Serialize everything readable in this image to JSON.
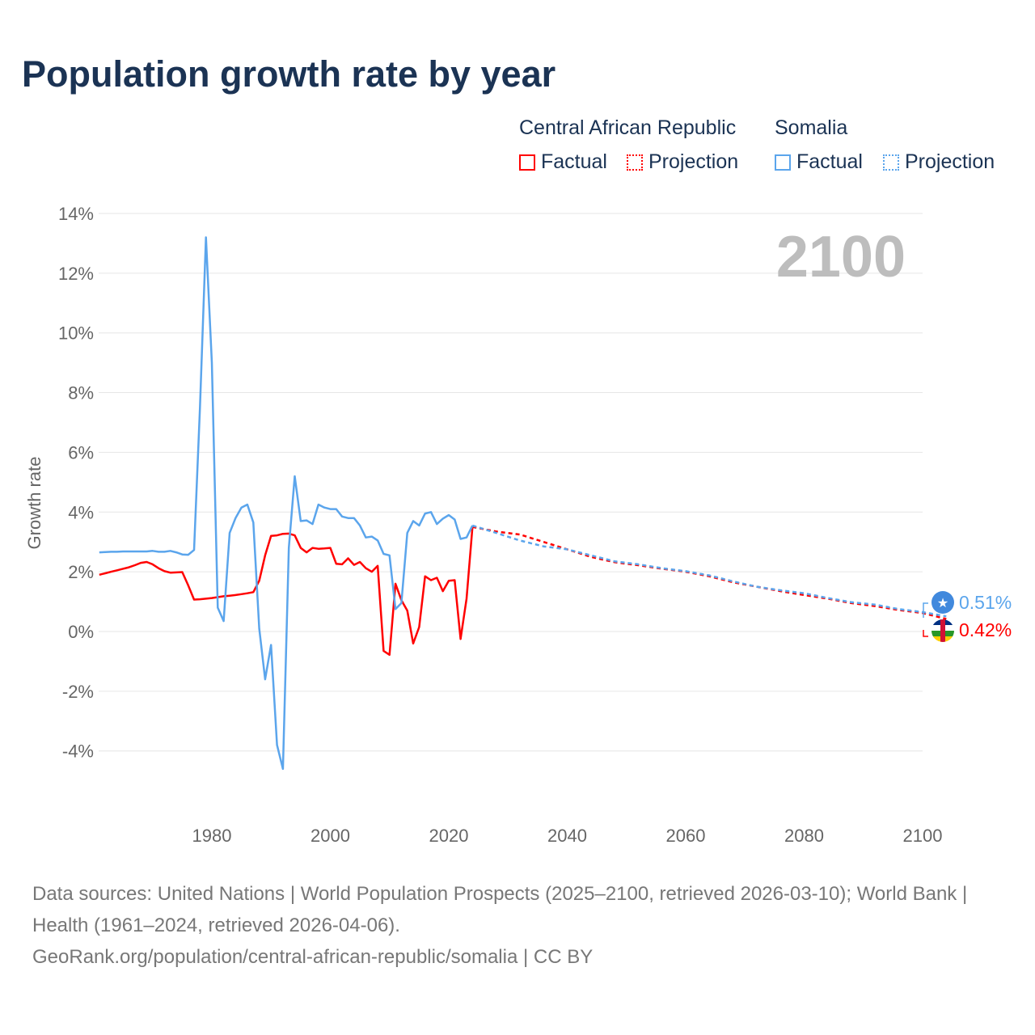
{
  "title": "Population growth rate by year",
  "legend": {
    "groups": [
      {
        "name": "Central African Republic",
        "color": "#ff0000",
        "items": [
          "Factual",
          "Projection"
        ]
      },
      {
        "name": "Somalia",
        "color": "#5ba5ec",
        "items": [
          "Factual",
          "Projection"
        ]
      }
    ]
  },
  "year_label": "2100",
  "end_labels": {
    "somalia": "0.51%",
    "car": "0.42%"
  },
  "footer": {
    "sources": "Data sources: United Nations | World Population Prospects (2025–2100, retrieved 2026-03-10); World Bank | Health (1961–2024, retrieved 2026-04-06).",
    "link": "GeoRank.org/population/central-african-republic/somalia | CC BY"
  },
  "chart_data": {
    "type": "line",
    "title": "Population growth rate by year",
    "xlabel": "",
    "ylabel": "Growth rate",
    "xlim": [
      1961,
      2100
    ],
    "ylim": [
      -5,
      14
    ],
    "x_ticks": [
      1980,
      2000,
      2020,
      2040,
      2060,
      2080,
      2100
    ],
    "x_tick_labels": [
      "1980",
      "2000",
      "2020",
      "2040",
      "2060",
      "2080",
      "2100"
    ],
    "y_ticks": [
      -4,
      -2,
      0,
      2,
      4,
      6,
      8,
      10,
      12,
      14
    ],
    "y_tick_labels": [
      "-4%",
      "-2%",
      "0%",
      "2%",
      "4%",
      "6%",
      "8%",
      "10%",
      "12%",
      "14%"
    ],
    "grid": true,
    "legend_position": "top-right",
    "series": [
      {
        "name": "Central African Republic – Factual",
        "color": "#ff0000",
        "dashed": false,
        "start_year": 1961,
        "values": [
          1.9,
          1.95,
          2.0,
          2.05,
          2.1,
          2.15,
          2.22,
          2.3,
          2.33,
          2.25,
          2.12,
          2.02,
          1.97,
          1.98,
          1.99,
          1.55,
          1.07,
          1.08,
          1.1,
          1.12,
          1.15,
          1.18,
          1.2,
          1.22,
          1.25,
          1.28,
          1.32,
          1.7,
          2.55,
          3.2,
          3.22,
          3.27,
          3.28,
          3.22,
          2.8,
          2.65,
          2.8,
          2.77,
          2.78,
          2.8,
          2.27,
          2.25,
          2.45,
          2.23,
          2.33,
          2.12,
          2.0,
          2.2,
          -0.65,
          -0.78,
          1.6,
          1.05,
          0.7,
          -0.4,
          0.15,
          1.85,
          1.72,
          1.8,
          1.35,
          1.7,
          1.72,
          -0.25,
          1.1,
          3.5
        ]
      },
      {
        "name": "Central African Republic – Projection",
        "color": "#ff0000",
        "dashed": true,
        "start_year": 2024,
        "step": 4,
        "values": [
          3.5,
          3.35,
          3.25,
          3.0,
          2.75,
          2.5,
          2.32,
          2.22,
          2.1,
          2.0,
          1.85,
          1.65,
          1.5,
          1.35,
          1.22,
          1.1,
          0.95,
          0.85,
          0.72,
          0.62,
          0.42
        ]
      },
      {
        "name": "Somalia – Factual",
        "color": "#5ba5ec",
        "dashed": false,
        "start_year": 1961,
        "values": [
          2.65,
          2.66,
          2.67,
          2.67,
          2.68,
          2.68,
          2.68,
          2.68,
          2.68,
          2.7,
          2.67,
          2.67,
          2.7,
          2.65,
          2.58,
          2.57,
          2.73,
          7.5,
          13.2,
          9.0,
          0.8,
          0.35,
          3.3,
          3.8,
          4.15,
          4.25,
          3.65,
          0.1,
          -1.6,
          -0.45,
          -3.8,
          -4.6,
          2.8,
          5.2,
          3.7,
          3.72,
          3.6,
          4.25,
          4.15,
          4.1,
          4.1,
          3.85,
          3.8,
          3.8,
          3.55,
          3.15,
          3.18,
          3.05,
          2.6,
          2.55,
          0.75,
          0.95,
          3.3,
          3.7,
          3.55,
          3.95,
          4.0,
          3.6,
          3.78,
          3.9,
          3.75,
          3.1,
          3.15,
          3.55
        ]
      },
      {
        "name": "Somalia – Projection",
        "color": "#5ba5ec",
        "dashed": true,
        "start_year": 2024,
        "step": 4,
        "values": [
          3.55,
          3.3,
          3.05,
          2.85,
          2.75,
          2.55,
          2.35,
          2.25,
          2.12,
          2.02,
          1.88,
          1.68,
          1.5,
          1.38,
          1.28,
          1.12,
          0.98,
          0.9,
          0.75,
          0.65,
          0.51
        ]
      }
    ]
  }
}
